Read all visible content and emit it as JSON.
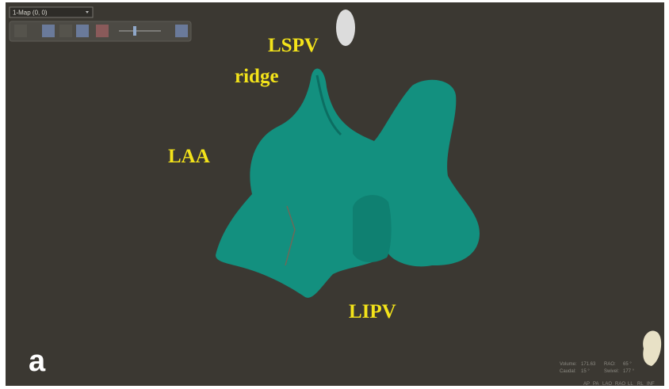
{
  "toolbar": {
    "map_selector": "1-Map (0, 0)"
  },
  "annotations": [
    "LSPV",
    "ridge",
    "LAA",
    "LIPV"
  ],
  "panel_label": "a",
  "status": {
    "rows": [
      [
        "Volume:",
        "171.63",
        "RAO:",
        "65 °"
      ],
      [
        "Caudal:",
        "15 °",
        "Swivel:",
        "177 °"
      ]
    ]
  },
  "view_buttons": [
    "AP",
    "PA",
    "LAO",
    "RAO",
    "LL",
    "RL",
    "INF"
  ]
}
